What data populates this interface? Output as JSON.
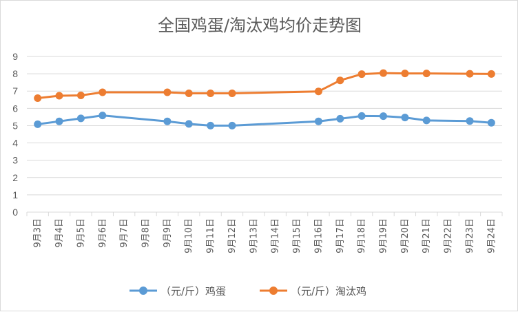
{
  "chart_data": {
    "type": "line",
    "title": "全国鸡蛋/淘汰鸡均价走势图",
    "categories": [
      "9月3日",
      "9月4日",
      "9月5日",
      "9月6日",
      "9月7日",
      "9月8日",
      "9月9日",
      "9月10日",
      "9月11日",
      "9月12日",
      "9月13日",
      "9月14日",
      "9月15日",
      "9月16日",
      "9月17日",
      "9月18日",
      "9月19日",
      "9月20日",
      "9月21日",
      "9月22日",
      "9月23日",
      "9月24日"
    ],
    "y_ticks": [
      "0",
      "1",
      "2",
      "3",
      "4",
      "5",
      "6",
      "7",
      "8",
      "9"
    ],
    "ylim": [
      0,
      9
    ],
    "grid": true,
    "legend_position": "bottom",
    "series": [
      {
        "name": "（元/斤）鸡蛋",
        "color": "#5b9bd5",
        "values": [
          5.08,
          5.25,
          5.42,
          5.59,
          null,
          null,
          5.25,
          5.1,
          5.0,
          5.0,
          null,
          null,
          null,
          5.25,
          5.4,
          5.56,
          5.55,
          5.47,
          5.3,
          null,
          5.27,
          5.17
        ]
      },
      {
        "name": "（元/斤）淘汰鸡",
        "color": "#ed7d31",
        "values": [
          6.59,
          6.73,
          6.75,
          6.93,
          null,
          null,
          6.93,
          6.87,
          6.87,
          6.87,
          null,
          null,
          null,
          6.98,
          7.62,
          7.98,
          8.04,
          8.02,
          8.02,
          null,
          8.0,
          7.99
        ]
      }
    ]
  }
}
